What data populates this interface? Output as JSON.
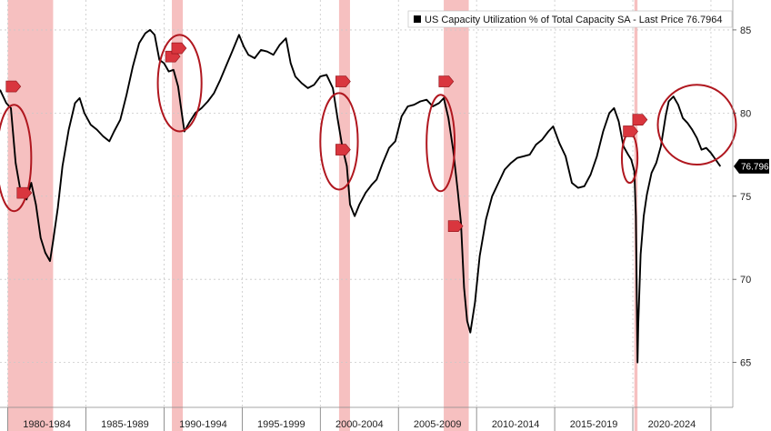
{
  "chart_data": {
    "type": "line",
    "legend": {
      "label": "US Capacity Utilization % of Total Capacity SA - Last Price 76.7964",
      "color": "#000000",
      "placement": "top-right"
    },
    "last_value": 76.7964,
    "last_value_label": "76.7964",
    "ylim": [
      62.3,
      86.8
    ],
    "xlim": [
      1979.5,
      2026.4
    ],
    "yticks": [
      65,
      70,
      75,
      80,
      85
    ],
    "ytick_labels": [
      "65",
      "70",
      "75",
      "80",
      "85"
    ],
    "grid": true,
    "x_period_labels": [
      "1980-1984",
      "1985-1989",
      "1990-1994",
      "1995-1999",
      "2000-2004",
      "2005-2009",
      "2010-2014",
      "2015-2019",
      "2020-2024"
    ],
    "recession_bands": [
      {
        "start": 1980.0,
        "end": 1982.9
      },
      {
        "start": 1990.5,
        "end": 1991.2
      },
      {
        "start": 2001.2,
        "end": 2001.9
      },
      {
        "start": 2007.9,
        "end": 2009.5
      },
      {
        "start": 2020.1,
        "end": 2020.3
      }
    ],
    "series": [
      {
        "x": [
          1979.5,
          1979.9,
          1980.2,
          1980.5,
          1980.8,
          1981.2,
          1981.5,
          1981.8,
          1982.1,
          1982.4,
          1982.7,
          1982.9,
          1983.2,
          1983.5,
          1983.9,
          1984.3,
          1984.6,
          1984.9,
          1985.3,
          1985.7,
          1986.1,
          1986.5,
          1986.8,
          1987.2,
          1987.6,
          1988.0,
          1988.4,
          1988.8,
          1989.1,
          1989.4,
          1989.7,
          1990.0,
          1990.3,
          1990.6,
          1990.9,
          1991.1,
          1991.3,
          1991.6,
          1992.0,
          1992.4,
          1992.8,
          1993.2,
          1993.6,
          1994.0,
          1994.4,
          1994.8,
          1995.1,
          1995.4,
          1995.8,
          1996.2,
          1996.6,
          1997.0,
          1997.4,
          1997.8,
          1998.1,
          1998.4,
          1998.8,
          1999.2,
          1999.6,
          2000.0,
          2000.4,
          2000.8,
          2001.1,
          2001.4,
          2001.7,
          2001.9,
          2002.2,
          2002.5,
          2002.9,
          2003.3,
          2003.6,
          2004.0,
          2004.4,
          2004.8,
          2005.2,
          2005.6,
          2006.0,
          2006.4,
          2006.8,
          2007.2,
          2007.6,
          2007.9,
          2008.2,
          2008.5,
          2008.8,
          2009.0,
          2009.2,
          2009.4,
          2009.6,
          2009.9,
          2010.2,
          2010.6,
          2011.0,
          2011.4,
          2011.8,
          2012.2,
          2012.6,
          2013.0,
          2013.4,
          2013.8,
          2014.2,
          2014.6,
          2014.9,
          2015.3,
          2015.7,
          2016.1,
          2016.5,
          2016.9,
          2017.3,
          2017.7,
          2018.1,
          2018.5,
          2018.8,
          2019.1,
          2019.4,
          2019.7,
          2019.9,
          2020.1,
          2020.2,
          2020.3,
          2020.35,
          2020.5,
          2020.7,
          2020.9,
          2021.2,
          2021.5,
          2021.8,
          2022.1,
          2022.3,
          2022.6,
          2022.9,
          2023.2,
          2023.5,
          2023.8,
          2024.1,
          2024.4,
          2024.7,
          2025.0,
          2025.3,
          2025.6
        ],
        "y": [
          81.4,
          80.6,
          80.3,
          77.0,
          75.4,
          74.8,
          75.8,
          74.5,
          72.5,
          71.6,
          71.1,
          72.3,
          74.3,
          76.8,
          79.0,
          80.6,
          80.9,
          80.0,
          79.3,
          79.0,
          78.6,
          78.3,
          78.9,
          79.6,
          81.1,
          82.8,
          84.2,
          84.8,
          85.0,
          84.7,
          83.2,
          83.0,
          82.5,
          82.6,
          81.6,
          80.2,
          78.9,
          79.4,
          80.0,
          80.3,
          80.7,
          81.2,
          82.0,
          82.9,
          83.8,
          84.7,
          84.0,
          83.5,
          83.3,
          83.8,
          83.7,
          83.5,
          84.1,
          84.5,
          83.0,
          82.2,
          81.8,
          81.5,
          81.7,
          82.2,
          82.3,
          81.5,
          79.7,
          78.0,
          76.8,
          74.5,
          73.8,
          74.5,
          75.2,
          75.7,
          76.0,
          77.0,
          77.9,
          78.3,
          79.8,
          80.4,
          80.5,
          80.7,
          80.8,
          80.4,
          80.6,
          80.9,
          79.7,
          77.8,
          75.3,
          73.4,
          69.5,
          67.5,
          66.8,
          68.6,
          71.4,
          73.6,
          75.0,
          75.8,
          76.6,
          77.0,
          77.3,
          77.4,
          77.5,
          78.1,
          78.4,
          78.9,
          79.2,
          78.2,
          77.4,
          75.8,
          75.5,
          75.6,
          76.3,
          77.4,
          78.9,
          80.0,
          80.3,
          79.5,
          78.0,
          77.5,
          77.2,
          76.5,
          73.8,
          65.0,
          67.3,
          71.5,
          73.8,
          75.1,
          76.4,
          77.0,
          78.0,
          79.8,
          80.7,
          81.0,
          80.5,
          79.7,
          79.4,
          79.0,
          78.5,
          77.8,
          77.9,
          77.6,
          77.2,
          76.8
        ]
      }
    ],
    "annotations": {
      "ellipses": [
        {
          "cx": 1980.4,
          "cy": 77.3,
          "rx": 1.1,
          "ry": 3.2
        },
        {
          "cx": 1991.0,
          "cy": 81.8,
          "rx": 1.4,
          "ry": 2.9
        },
        {
          "cx": 2001.2,
          "cy": 78.3,
          "rx": 1.2,
          "ry": 2.9
        },
        {
          "cx": 2007.7,
          "cy": 78.2,
          "rx": 0.9,
          "ry": 2.9
        },
        {
          "cx": 2019.8,
          "cy": 77.3,
          "rx": 0.5,
          "ry": 1.5
        },
        {
          "cx": 2024.1,
          "cy": 79.3,
          "rx": 2.5,
          "ry": 2.4
        }
      ],
      "markers": [
        {
          "x": 1980.3,
          "y": 81.6
        },
        {
          "x": 1981.0,
          "y": 75.2
        },
        {
          "x": 1990.5,
          "y": 83.4
        },
        {
          "x": 1990.9,
          "y": 83.9
        },
        {
          "x": 2001.4,
          "y": 81.9
        },
        {
          "x": 2001.4,
          "y": 77.8
        },
        {
          "x": 2008.0,
          "y": 81.9
        },
        {
          "x": 2008.6,
          "y": 73.2
        },
        {
          "x": 2019.8,
          "y": 78.9
        },
        {
          "x": 2020.4,
          "y": 79.6
        }
      ]
    }
  }
}
